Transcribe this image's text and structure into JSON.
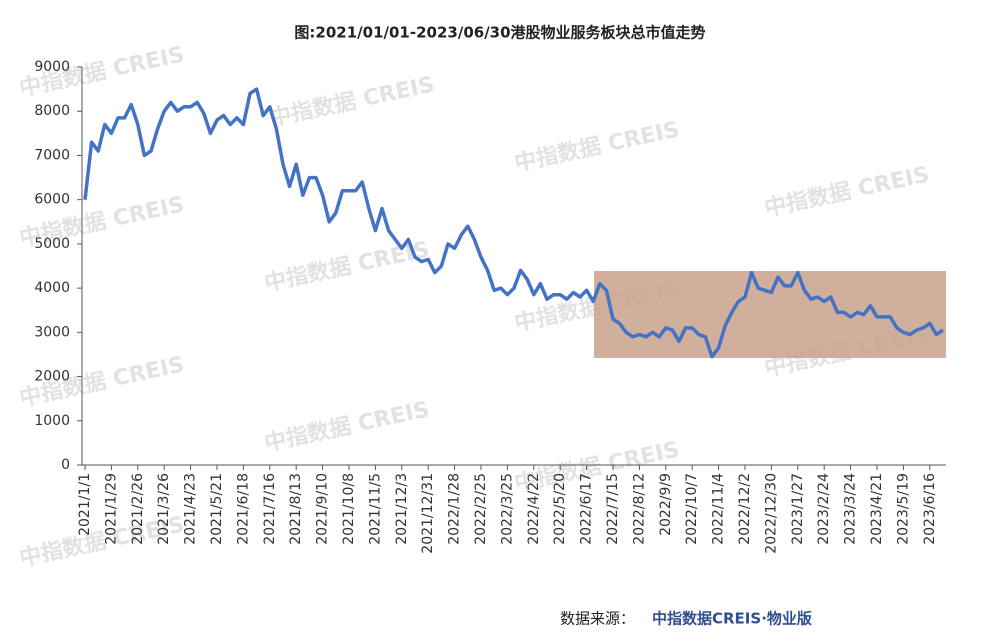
{
  "chart_data": {
    "type": "line",
    "title": "图:2021/01/01-2023/06/30港股物业服务板块总市值走势",
    "watermark": "中指数据 CREIS",
    "source_label": "数据来源：",
    "source": "中指数据CREIS·物业版",
    "categories": [
      "2021/1/1",
      null,
      null,
      null,
      "2021/1/29",
      null,
      null,
      null,
      "2021/2/26",
      null,
      null,
      null,
      "2021/3/26",
      null,
      null,
      null,
      "2021/4/23",
      null,
      null,
      null,
      "2021/5/21",
      null,
      null,
      null,
      "2021/6/18",
      null,
      null,
      null,
      "2021/7/16",
      null,
      null,
      null,
      "2021/8/13",
      null,
      null,
      null,
      "2021/9/10",
      null,
      null,
      null,
      "2021/10/8",
      null,
      null,
      null,
      "2021/11/5",
      null,
      null,
      null,
      "2021/12/3",
      null,
      null,
      null,
      "2021/12/31",
      null,
      null,
      null,
      "2022/1/28",
      null,
      null,
      null,
      "2022/2/25",
      null,
      null,
      null,
      "2022/3/25",
      null,
      null,
      null,
      "2022/4/22",
      null,
      null,
      null,
      "2022/5/20",
      null,
      null,
      null,
      "2022/6/17",
      null,
      null,
      null,
      "2022/7/15",
      null,
      null,
      null,
      "2022/8/12",
      null,
      null,
      null,
      "2022/9/9",
      null,
      null,
      null,
      "2022/10/7",
      null,
      null,
      null,
      "2022/11/4",
      null,
      null,
      null,
      "2022/12/2",
      null,
      null,
      null,
      "2022/12/30",
      null,
      null,
      null,
      "2023/1/27",
      null,
      null,
      null,
      "2023/2/24",
      null,
      null,
      null,
      "2023/3/24",
      null,
      null,
      null,
      "2023/4/21",
      null,
      null,
      null,
      "2023/5/19",
      null,
      null,
      null,
      "2023/6/16",
      null,
      null
    ],
    "series": [
      {
        "name": "总市值",
        "color": "#4472c4",
        "values": [
          6000,
          7300,
          7100,
          7700,
          7500,
          7850,
          7850,
          8150,
          7700,
          7000,
          7100,
          7600,
          8000,
          8200,
          8000,
          8100,
          8100,
          8200,
          7950,
          7500,
          7800,
          7900,
          7700,
          7850,
          7700,
          8400,
          8500,
          7900,
          8100,
          7600,
          6800,
          6300,
          6800,
          6100,
          6500,
          6500,
          6100,
          5500,
          5700,
          6200,
          6200,
          6200,
          6400,
          5800,
          5300,
          5800,
          5300,
          5100,
          4900,
          5100,
          4700,
          4600,
          4650,
          4350,
          4500,
          5000,
          4900,
          5200,
          5400,
          5100,
          4700,
          4400,
          3950,
          4000,
          3850,
          4000,
          4400,
          4200,
          3850,
          4100,
          3750,
          3850,
          3850,
          3750,
          3900,
          3800,
          3950,
          3700,
          4100,
          3950,
          3300,
          3200,
          3000,
          2900,
          2950,
          2900,
          3000,
          2900,
          3100,
          3050,
          2800,
          3100,
          3100,
          2950,
          2900,
          2450,
          2650,
          3150,
          3450,
          3700,
          3800,
          4350,
          4000,
          3950,
          3900,
          4250,
          4050,
          4050,
          4350,
          3950,
          3750,
          3800,
          3700,
          3800,
          3450,
          3450,
          3350,
          3450,
          3400,
          3600,
          3350,
          3350,
          3350,
          3100,
          3000,
          2950,
          3050,
          3100,
          3200,
          2950,
          3050
        ]
      }
    ],
    "ylim": [
      0,
      9000
    ],
    "yticks": [
      0,
      1000,
      2000,
      3000,
      4000,
      5000,
      6000,
      7000,
      8000,
      9000
    ]
  }
}
